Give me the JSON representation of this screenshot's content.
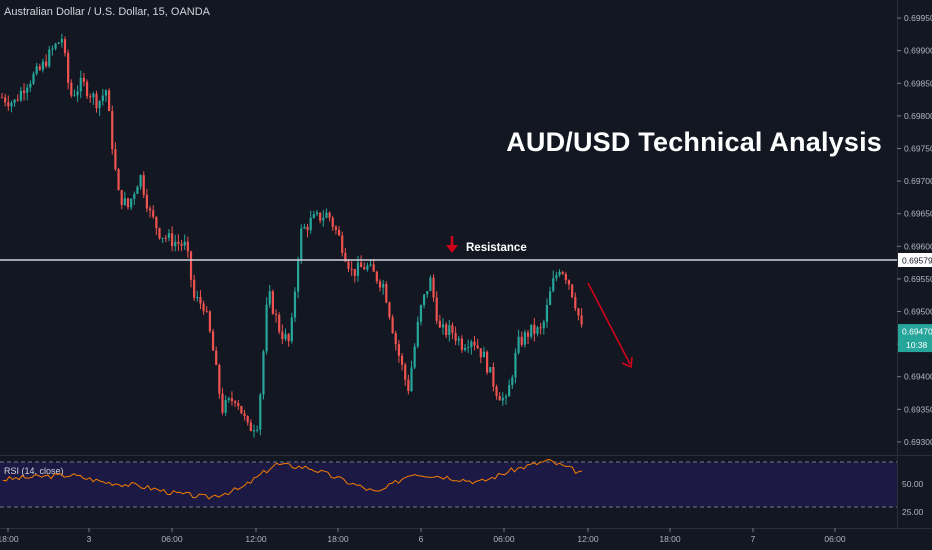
{
  "header": {
    "symbol_title": "Australian Dollar / U.S. Dollar, 15, OANDA"
  },
  "headline": "AUD/USD Technical Analysis",
  "annotations": {
    "resistance_label": "Resistance"
  },
  "rsi": {
    "label": "RSI (14, close)",
    "levels": [
      "50.00",
      "25.00"
    ]
  },
  "price_axis": {
    "ticks": [
      "0.69950",
      "0.69900",
      "0.69850",
      "0.69800",
      "0.69750",
      "0.69700",
      "0.69650",
      "0.69600",
      "0.69550",
      "0.69500",
      "0.69450",
      "0.69400",
      "0.69350",
      "0.69300"
    ],
    "resistance_price": "0.69579",
    "last_price": "0.69470",
    "countdown": "10:38"
  },
  "time_axis": {
    "ticks": [
      "18:00",
      "3",
      "06:00",
      "12:00",
      "18:00",
      "6",
      "06:00",
      "12:00",
      "18:00",
      "7",
      "06:00"
    ]
  },
  "colors": {
    "background": "#131722",
    "up": "#26a69a",
    "down": "#ef5350",
    "rsi_line": "#f57c00",
    "resistance": "#cfd3dc",
    "arrow": "#d0021b",
    "last_price_tag": "#26a69a"
  },
  "chart_data": {
    "type": "line",
    "title": "Australian Dollar / U.S. Dollar, 15, OANDA",
    "series": [
      {
        "name": "AUD/USD",
        "x": [
          "18:00",
          "3",
          "06:00",
          "12:00",
          "18:00",
          "6",
          "06:00",
          "12:00"
        ],
        "values": [
          0.6983,
          0.699,
          0.6962,
          0.6932,
          0.6964,
          0.6956,
          0.6938,
          0.6947
        ]
      }
    ],
    "resistance": 0.69579,
    "ylim": [
      0.6928,
      0.6997
    ],
    "rsi_values": [
      45,
      48,
      50,
      42,
      38,
      30,
      25,
      35,
      62,
      58,
      44,
      30,
      52,
      48,
      42,
      56,
      66,
      52
    ]
  }
}
